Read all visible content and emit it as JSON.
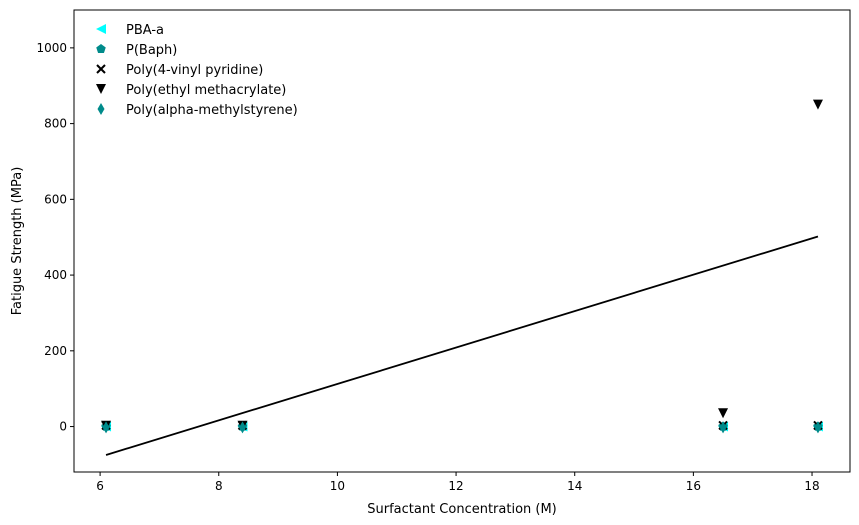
{
  "chart_data": {
    "type": "scatter",
    "title": "",
    "xlabel": "Surfactant Concentration (M)",
    "ylabel": "Fatigue Strength (MPa)",
    "xlim": [
      5.56,
      18.64
    ],
    "ylim": [
      -120,
      1100
    ],
    "xticks": [
      6,
      8,
      10,
      12,
      14,
      16,
      18
    ],
    "yticks": [
      0,
      200,
      400,
      600,
      800,
      1000
    ],
    "grid": false,
    "legend": {
      "position": "top-left",
      "frame": false
    },
    "series": [
      {
        "name": "PBA-a",
        "marker": "triangle-left",
        "color": "#00ffff",
        "x": [
          6.1,
          8.4,
          16.5,
          18.1
        ],
        "y": [
          0,
          0,
          0,
          0
        ]
      },
      {
        "name": "P(Baph)",
        "marker": "pentagon",
        "color": "#008b8b",
        "x": [
          6.1,
          8.4,
          16.5,
          18.1
        ],
        "y": [
          0,
          0,
          0,
          0
        ]
      },
      {
        "name": "Poly(4-vinyl pyridine)",
        "marker": "x",
        "color": "#000000",
        "x": [
          6.1,
          8.4,
          16.5,
          18.1
        ],
        "y": [
          3,
          3,
          3,
          3
        ]
      },
      {
        "name": "Poly(ethyl methacrylate)",
        "marker": "triangle-down",
        "color": "#000000",
        "x": [
          6.1,
          8.4,
          16.5,
          18.1
        ],
        "y": [
          2,
          2,
          35,
          850
        ]
      },
      {
        "name": "Poly(alpha-methylstyrene)",
        "marker": "thin-diamond",
        "color": "#008b8b",
        "x": [
          6.1,
          8.4,
          16.5,
          18.1
        ],
        "y": [
          -2,
          -2,
          -2,
          -2
        ]
      }
    ],
    "fit_line": {
      "color": "#000000",
      "x": [
        6.1,
        18.1
      ],
      "y": [
        -75,
        502
      ]
    }
  }
}
